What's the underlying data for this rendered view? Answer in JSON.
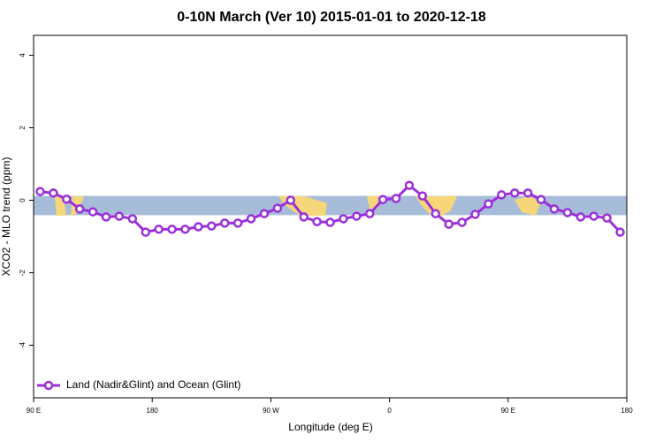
{
  "chart_data": {
    "type": "line",
    "title": "0-10N March (Ver 10)   2015-01-01 to 2020-12-18",
    "x_label": "Longitude (deg E)",
    "y_label": "XCO2 - MLO trend (ppm)",
    "xlim": [
      90,
      540
    ],
    "xticks": [
      {
        "value": 90,
        "label": "90 E"
      },
      180,
      {
        "value": 270,
        "label": "90 W"
      },
      {
        "value": 360,
        "label": "0"
      },
      {
        "value": 450,
        "label": "90 E"
      },
      {
        "value": 540,
        "label": "180"
      }
    ],
    "ylim": [
      -5.45,
      4.55
    ],
    "yticks": [
      -4,
      -2,
      0,
      2,
      4
    ],
    "band": [
      -0.41,
      0.12
    ],
    "band_color": "#a7bcd9",
    "legend": "bottom-left",
    "x": [
      95,
      105,
      115,
      125,
      135,
      145,
      155,
      165,
      175,
      185,
      195,
      205,
      215,
      225,
      235,
      245,
      255,
      265,
      275,
      285,
      295,
      305,
      315,
      325,
      335,
      345,
      355,
      365,
      375,
      385,
      395,
      405,
      415,
      425,
      435,
      445,
      455,
      465,
      475,
      485,
      495,
      505,
      515,
      525,
      535
    ],
    "series": [
      {
        "name": "Land (Nadir&Glint) and Ocean (Glint)",
        "color": "#9b30d9",
        "values": [
          0.24,
          0.2,
          0.03,
          -0.24,
          -0.32,
          -0.46,
          -0.44,
          -0.51,
          -0.88,
          -0.8,
          -0.8,
          -0.8,
          -0.73,
          -0.71,
          -0.63,
          -0.63,
          -0.51,
          -0.37,
          -0.22,
          0.0,
          -0.46,
          -0.59,
          -0.61,
          -0.51,
          -0.44,
          -0.37,
          0.02,
          0.05,
          0.41,
          0.12,
          -0.37,
          -0.66,
          -0.61,
          -0.39,
          -0.1,
          0.15,
          0.2,
          0.2,
          0.02,
          -0.24,
          -0.34,
          -0.46,
          -0.44,
          -0.49,
          -0.88
        ]
      }
    ]
  }
}
